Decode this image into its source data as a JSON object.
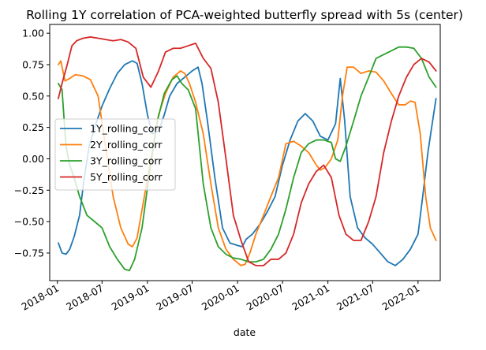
{
  "chart_data": {
    "type": "line",
    "title": "Rolling 1Y correlation of PCA-weighted butterfly spread with 5s (center)",
    "xlabel": "date",
    "ylabel": "",
    "x_range": [
      "2017-12-01",
      "2022-04-01"
    ],
    "ylim": [
      -0.97,
      1.07
    ],
    "yticks": [
      -0.75,
      -0.5,
      -0.25,
      0.0,
      0.25,
      0.5,
      0.75,
      1.0
    ],
    "ytick_labels": [
      "−0.75",
      "−0.50",
      "−0.25",
      "0.00",
      "0.25",
      "0.50",
      "0.75",
      "1.00"
    ],
    "xticks": [
      "2018-01-01",
      "2018-07-01",
      "2019-01-01",
      "2019-07-01",
      "2020-01-01",
      "2020-07-01",
      "2021-01-01",
      "2021-07-01",
      "2022-01-01"
    ],
    "xtick_labels": [
      "2018-01",
      "2018-07",
      "2019-01",
      "2019-07",
      "2020-01",
      "2020-07",
      "2021-01",
      "2021-07",
      "2022-01"
    ],
    "grid": false,
    "legend_position": "center-left",
    "series": [
      {
        "name": "1Y_rolling_corr",
        "color": "#1f77b4",
        "points": [
          [
            "2018-01-05",
            -0.67
          ],
          [
            "2018-01-20",
            -0.75
          ],
          [
            "2018-02-05",
            -0.76
          ],
          [
            "2018-02-20",
            -0.72
          ],
          [
            "2018-03-10",
            -0.62
          ],
          [
            "2018-04-01",
            -0.45
          ],
          [
            "2018-04-20",
            -0.15
          ],
          [
            "2018-05-10",
            0.1
          ],
          [
            "2018-06-01",
            0.25
          ],
          [
            "2018-07-01",
            0.42
          ],
          [
            "2018-08-01",
            0.56
          ],
          [
            "2018-09-01",
            0.68
          ],
          [
            "2018-10-01",
            0.75
          ],
          [
            "2018-11-01",
            0.78
          ],
          [
            "2018-11-20",
            0.76
          ],
          [
            "2018-12-10",
            0.6
          ],
          [
            "2019-01-01",
            0.35
          ],
          [
            "2019-01-20",
            0.2
          ],
          [
            "2019-02-15",
            0.22
          ],
          [
            "2019-03-10",
            0.35
          ],
          [
            "2019-04-01",
            0.5
          ],
          [
            "2019-05-01",
            0.6
          ],
          [
            "2019-06-01",
            0.65
          ],
          [
            "2019-07-01",
            0.7
          ],
          [
            "2019-07-25",
            0.73
          ],
          [
            "2019-08-10",
            0.6
          ],
          [
            "2019-09-01",
            0.3
          ],
          [
            "2019-10-01",
            -0.15
          ],
          [
            "2019-11-01",
            -0.55
          ],
          [
            "2019-12-01",
            -0.67
          ],
          [
            "2020-01-01",
            -0.69
          ],
          [
            "2020-01-20",
            -0.7
          ],
          [
            "2020-02-05",
            -0.64
          ],
          [
            "2020-03-01",
            -0.6
          ],
          [
            "2020-04-01",
            -0.52
          ],
          [
            "2020-05-01",
            -0.42
          ],
          [
            "2020-06-01",
            -0.3
          ],
          [
            "2020-07-01",
            -0.05
          ],
          [
            "2020-08-01",
            0.15
          ],
          [
            "2020-09-01",
            0.3
          ],
          [
            "2020-10-01",
            0.36
          ],
          [
            "2020-11-01",
            0.3
          ],
          [
            "2020-12-01",
            0.18
          ],
          [
            "2021-01-01",
            0.15
          ],
          [
            "2021-02-01",
            0.28
          ],
          [
            "2021-02-20",
            0.64
          ],
          [
            "2021-03-10",
            0.3
          ],
          [
            "2021-04-01",
            -0.3
          ],
          [
            "2021-05-01",
            -0.55
          ],
          [
            "2021-06-01",
            -0.63
          ],
          [
            "2021-07-01",
            -0.68
          ],
          [
            "2021-08-01",
            -0.75
          ],
          [
            "2021-09-01",
            -0.82
          ],
          [
            "2021-10-01",
            -0.85
          ],
          [
            "2021-11-01",
            -0.8
          ],
          [
            "2021-12-01",
            -0.72
          ],
          [
            "2022-01-01",
            -0.6
          ],
          [
            "2022-01-20",
            -0.3
          ],
          [
            "2022-02-10",
            0.05
          ],
          [
            "2022-03-01",
            0.3
          ],
          [
            "2022-03-15",
            0.48
          ]
        ]
      },
      {
        "name": "2Y_rolling_corr",
        "color": "#ff7f0e",
        "points": [
          [
            "2018-01-05",
            0.75
          ],
          [
            "2018-01-15",
            0.78
          ],
          [
            "2018-02-01",
            0.62
          ],
          [
            "2018-02-20",
            0.64
          ],
          [
            "2018-03-15",
            0.67
          ],
          [
            "2018-04-15",
            0.66
          ],
          [
            "2018-05-15",
            0.63
          ],
          [
            "2018-06-15",
            0.5
          ],
          [
            "2018-07-15",
            0.1
          ],
          [
            "2018-08-15",
            -0.3
          ],
          [
            "2018-09-15",
            -0.55
          ],
          [
            "2018-10-15",
            -0.68
          ],
          [
            "2018-11-01",
            -0.7
          ],
          [
            "2018-11-20",
            -0.63
          ],
          [
            "2018-12-15",
            -0.35
          ],
          [
            "2019-01-15",
            0.0
          ],
          [
            "2019-02-15",
            0.35
          ],
          [
            "2019-03-15",
            0.52
          ],
          [
            "2019-04-15",
            0.65
          ],
          [
            "2019-05-15",
            0.7
          ],
          [
            "2019-06-01",
            0.68
          ],
          [
            "2019-06-20",
            0.6
          ],
          [
            "2019-07-15",
            0.45
          ],
          [
            "2019-08-15",
            0.2
          ],
          [
            "2019-09-15",
            -0.2
          ],
          [
            "2019-10-15",
            -0.55
          ],
          [
            "2019-11-15",
            -0.72
          ],
          [
            "2019-12-15",
            -0.8
          ],
          [
            "2020-01-15",
            -0.85
          ],
          [
            "2020-02-01",
            -0.84
          ],
          [
            "2020-02-20",
            -0.75
          ],
          [
            "2020-03-15",
            -0.6
          ],
          [
            "2020-04-15",
            -0.45
          ],
          [
            "2020-05-15",
            -0.3
          ],
          [
            "2020-06-15",
            -0.15
          ],
          [
            "2020-07-15",
            0.12
          ],
          [
            "2020-08-15",
            0.14
          ],
          [
            "2020-09-15",
            0.1
          ],
          [
            "2020-10-15",
            0.05
          ],
          [
            "2020-11-15",
            -0.05
          ],
          [
            "2020-12-01",
            -0.09
          ],
          [
            "2020-12-20",
            -0.07
          ],
          [
            "2021-01-15",
            0.0
          ],
          [
            "2021-02-10",
            0.15
          ],
          [
            "2021-03-01",
            0.5
          ],
          [
            "2021-03-20",
            0.73
          ],
          [
            "2021-04-15",
            0.73
          ],
          [
            "2021-05-15",
            0.68
          ],
          [
            "2021-06-15",
            0.7
          ],
          [
            "2021-07-15",
            0.69
          ],
          [
            "2021-08-15",
            0.62
          ],
          [
            "2021-09-15",
            0.52
          ],
          [
            "2021-10-15",
            0.43
          ],
          [
            "2021-11-10",
            0.43
          ],
          [
            "2021-12-01",
            0.46
          ],
          [
            "2021-12-20",
            0.45
          ],
          [
            "2022-01-10",
            0.2
          ],
          [
            "2022-02-01",
            -0.3
          ],
          [
            "2022-02-20",
            -0.55
          ],
          [
            "2022-03-15",
            -0.65
          ]
        ]
      },
      {
        "name": "3Y_rolling_corr",
        "color": "#2ca02c",
        "points": [
          [
            "2018-01-05",
            0.6
          ],
          [
            "2018-01-20",
            0.55
          ],
          [
            "2018-02-05",
            0.1
          ],
          [
            "2018-02-20",
            -0.05
          ],
          [
            "2018-03-10",
            -0.15
          ],
          [
            "2018-04-01",
            -0.3
          ],
          [
            "2018-05-01",
            -0.45
          ],
          [
            "2018-06-01",
            -0.5
          ],
          [
            "2018-07-01",
            -0.55
          ],
          [
            "2018-08-01",
            -0.7
          ],
          [
            "2018-09-01",
            -0.8
          ],
          [
            "2018-10-01",
            -0.88
          ],
          [
            "2018-10-20",
            -0.89
          ],
          [
            "2018-11-10",
            -0.8
          ],
          [
            "2018-12-10",
            -0.55
          ],
          [
            "2019-01-10",
            -0.1
          ],
          [
            "2019-02-10",
            0.3
          ],
          [
            "2019-03-10",
            0.52
          ],
          [
            "2019-04-10",
            0.63
          ],
          [
            "2019-05-01",
            0.66
          ],
          [
            "2019-05-20",
            0.6
          ],
          [
            "2019-06-15",
            0.55
          ],
          [
            "2019-07-15",
            0.4
          ],
          [
            "2019-08-15",
            -0.2
          ],
          [
            "2019-09-15",
            -0.55
          ],
          [
            "2019-10-15",
            -0.7
          ],
          [
            "2019-11-15",
            -0.76
          ],
          [
            "2019-12-15",
            -0.79
          ],
          [
            "2020-01-15",
            -0.8
          ],
          [
            "2020-02-15",
            -0.82
          ],
          [
            "2020-03-15",
            -0.82
          ],
          [
            "2020-04-15",
            -0.8
          ],
          [
            "2020-05-15",
            -0.72
          ],
          [
            "2020-06-15",
            -0.6
          ],
          [
            "2020-07-15",
            -0.4
          ],
          [
            "2020-08-15",
            -0.15
          ],
          [
            "2020-09-15",
            0.05
          ],
          [
            "2020-10-15",
            0.12
          ],
          [
            "2020-11-15",
            0.15
          ],
          [
            "2020-12-15",
            0.15
          ],
          [
            "2021-01-15",
            0.13
          ],
          [
            "2021-02-01",
            0.0
          ],
          [
            "2021-02-20",
            -0.02
          ],
          [
            "2021-03-15",
            0.1
          ],
          [
            "2021-04-15",
            0.3
          ],
          [
            "2021-05-15",
            0.5
          ],
          [
            "2021-06-15",
            0.65
          ],
          [
            "2021-07-15",
            0.8
          ],
          [
            "2021-08-15",
            0.83
          ],
          [
            "2021-09-15",
            0.86
          ],
          [
            "2021-10-15",
            0.89
          ],
          [
            "2021-11-15",
            0.89
          ],
          [
            "2021-12-15",
            0.88
          ],
          [
            "2022-01-15",
            0.8
          ],
          [
            "2022-02-15",
            0.65
          ],
          [
            "2022-03-15",
            0.57
          ]
        ]
      },
      {
        "name": "5Y_rolling_corr",
        "color": "#d62728",
        "points": [
          [
            "2018-01-05",
            0.48
          ],
          [
            "2018-01-20",
            0.6
          ],
          [
            "2018-02-10",
            0.75
          ],
          [
            "2018-03-01",
            0.9
          ],
          [
            "2018-03-20",
            0.94
          ],
          [
            "2018-04-15",
            0.96
          ],
          [
            "2018-05-15",
            0.97
          ],
          [
            "2018-06-15",
            0.96
          ],
          [
            "2018-07-15",
            0.95
          ],
          [
            "2018-08-15",
            0.94
          ],
          [
            "2018-09-15",
            0.95
          ],
          [
            "2018-10-15",
            0.93
          ],
          [
            "2018-11-15",
            0.88
          ],
          [
            "2018-12-15",
            0.65
          ],
          [
            "2019-01-15",
            0.57
          ],
          [
            "2019-02-15",
            0.7
          ],
          [
            "2019-03-15",
            0.85
          ],
          [
            "2019-04-15",
            0.88
          ],
          [
            "2019-05-15",
            0.88
          ],
          [
            "2019-06-15",
            0.9
          ],
          [
            "2019-07-15",
            0.92
          ],
          [
            "2019-08-15",
            0.8
          ],
          [
            "2019-09-15",
            0.72
          ],
          [
            "2019-10-15",
            0.45
          ],
          [
            "2019-11-15",
            0.0
          ],
          [
            "2019-12-15",
            -0.45
          ],
          [
            "2020-01-15",
            -0.65
          ],
          [
            "2020-02-15",
            -0.82
          ],
          [
            "2020-03-15",
            -0.85
          ],
          [
            "2020-04-15",
            -0.85
          ],
          [
            "2020-05-15",
            -0.8
          ],
          [
            "2020-06-15",
            -0.8
          ],
          [
            "2020-07-15",
            -0.75
          ],
          [
            "2020-08-15",
            -0.6
          ],
          [
            "2020-09-15",
            -0.35
          ],
          [
            "2020-10-15",
            -0.2
          ],
          [
            "2020-11-15",
            -0.1
          ],
          [
            "2020-12-15",
            -0.05
          ],
          [
            "2021-01-15",
            -0.15
          ],
          [
            "2021-02-15",
            -0.45
          ],
          [
            "2021-03-15",
            -0.6
          ],
          [
            "2021-04-15",
            -0.65
          ],
          [
            "2021-05-15",
            -0.65
          ],
          [
            "2021-06-15",
            -0.5
          ],
          [
            "2021-07-15",
            -0.3
          ],
          [
            "2021-08-15",
            0.05
          ],
          [
            "2021-09-15",
            0.3
          ],
          [
            "2021-10-15",
            0.5
          ],
          [
            "2021-11-15",
            0.65
          ],
          [
            "2021-12-15",
            0.75
          ],
          [
            "2022-01-15",
            0.8
          ],
          [
            "2022-02-15",
            0.77
          ],
          [
            "2022-03-15",
            0.7
          ]
        ]
      }
    ]
  }
}
